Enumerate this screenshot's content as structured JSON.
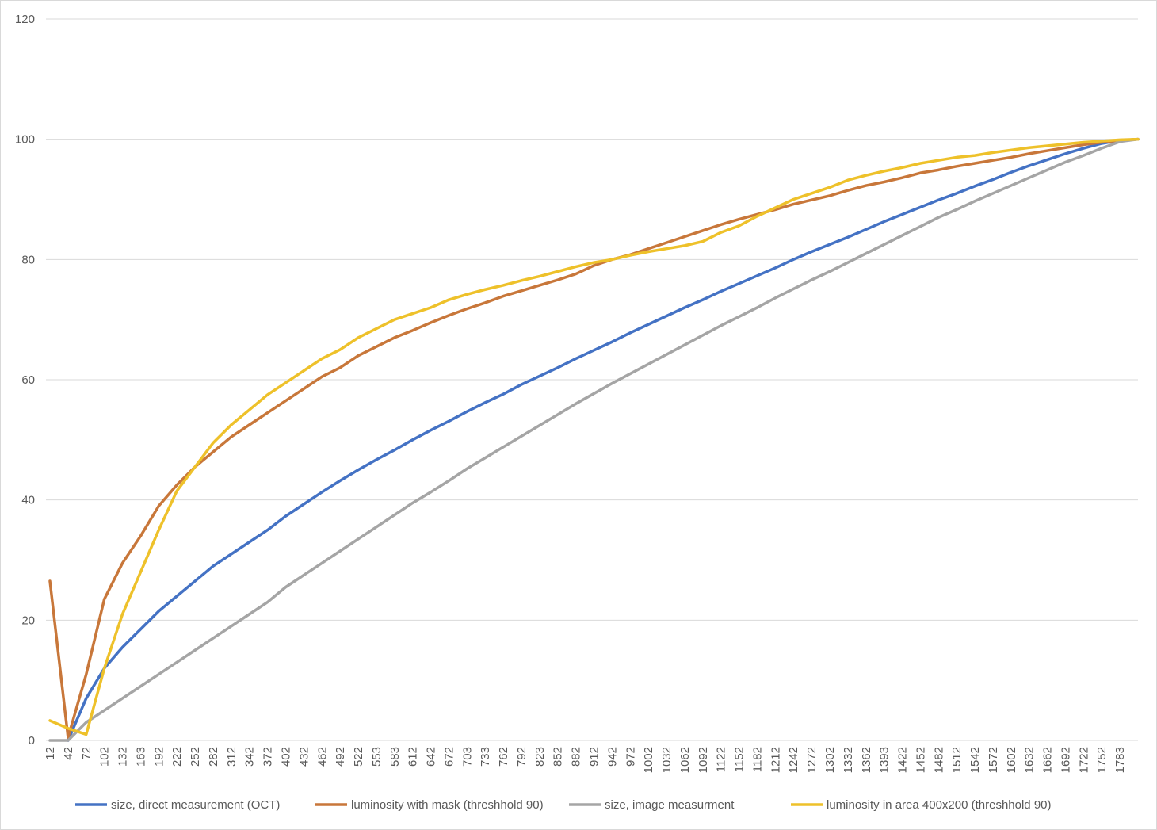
{
  "chart_data": {
    "type": "line",
    "categories": [
      "12",
      "42",
      "72",
      "102",
      "132",
      "163",
      "192",
      "222",
      "252",
      "282",
      "312",
      "342",
      "372",
      "402",
      "432",
      "462",
      "492",
      "522",
      "553",
      "583",
      "612",
      "642",
      "672",
      "703",
      "733",
      "762",
      "792",
      "823",
      "852",
      "882",
      "912",
      "942",
      "972",
      "1002",
      "1032",
      "1062",
      "1092",
      "1122",
      "1152",
      "1182",
      "1212",
      "1242",
      "1272",
      "1302",
      "1332",
      "1362",
      "1393",
      "1422",
      "1452",
      "1482",
      "1512",
      "1542",
      "1572",
      "1602",
      "1632",
      "1662",
      "1692",
      "1722",
      "1752",
      "1783",
      null
    ],
    "series": [
      {
        "name": "size, direct measurement (OCT)",
        "color": "#4472c4",
        "values": [
          null,
          0,
          7,
          12,
          15.5,
          18.5,
          21.5,
          24,
          26.5,
          29,
          31,
          33,
          35,
          37.3,
          39.3,
          41.3,
          43.2,
          45,
          46.7,
          48.3,
          50,
          51.6,
          53.1,
          54.7,
          56.2,
          57.6,
          59.2,
          60.6,
          62,
          63.5,
          64.9,
          66.3,
          67.8,
          69.2,
          70.6,
          72,
          73.3,
          74.7,
          76,
          77.3,
          78.6,
          80,
          81.3,
          82.5,
          83.7,
          85,
          86.3,
          87.5,
          88.7,
          89.9,
          91,
          92.2,
          93.3,
          94.5,
          95.6,
          96.6,
          97.6,
          98.5,
          99.3,
          99.8,
          100
        ]
      },
      {
        "name": "luminosity with mask (threshhold 90)",
        "color": "#c8773a",
        "values": [
          26.5,
          0.5,
          11,
          23.5,
          29.5,
          34,
          39,
          42.5,
          45.5,
          48,
          50.5,
          52.5,
          54.5,
          56.5,
          58.5,
          60.5,
          62,
          64,
          65.5,
          67,
          68.2,
          69.5,
          70.7,
          71.8,
          72.8,
          73.9,
          74.8,
          75.7,
          76.6,
          77.6,
          79,
          80,
          80.8,
          81.8,
          82.8,
          83.8,
          84.8,
          85.8,
          86.7,
          87.5,
          88.3,
          89.2,
          89.9,
          90.6,
          91.5,
          92.3,
          92.9,
          93.6,
          94.4,
          94.9,
          95.5,
          96,
          96.5,
          97,
          97.6,
          98.1,
          98.6,
          99.1,
          99.5,
          99.8,
          100
        ]
      },
      {
        "name": "size, image measurment",
        "color": "#a5a5a5",
        "values": [
          0,
          0,
          3,
          5,
          7,
          9,
          11,
          13,
          15,
          17,
          19,
          21,
          23,
          25.5,
          27.5,
          29.5,
          31.5,
          33.5,
          35.5,
          37.5,
          39.5,
          41.3,
          43.2,
          45.2,
          47,
          48.8,
          50.6,
          52.4,
          54.2,
          56,
          57.7,
          59.4,
          61,
          62.6,
          64.2,
          65.8,
          67.4,
          69,
          70.5,
          72,
          73.6,
          75.1,
          76.6,
          78,
          79.5,
          81,
          82.5,
          84,
          85.5,
          87,
          88.3,
          89.7,
          91,
          92.3,
          93.6,
          94.9,
          96.2,
          97.3,
          98.5,
          99.6,
          100
        ]
      },
      {
        "name": "luminosity in area 400x200 (threshhold 90)",
        "color": "#eec12a",
        "values": [
          3.3,
          2,
          1,
          12,
          21,
          28,
          35,
          41.5,
          45.5,
          49.5,
          52.5,
          55,
          57.5,
          59.5,
          61.5,
          63.5,
          65,
          67,
          68.5,
          70,
          71,
          72,
          73.3,
          74.2,
          75,
          75.7,
          76.5,
          77.2,
          78,
          78.8,
          79.5,
          80,
          80.7,
          81.3,
          81.8,
          82.3,
          83,
          84.5,
          85.6,
          87.2,
          88.6,
          90,
          91,
          92,
          93.2,
          94,
          94.7,
          95.3,
          96,
          96.5,
          97,
          97.3,
          97.8,
          98.2,
          98.6,
          98.9,
          99.2,
          99.5,
          99.7,
          99.9,
          100
        ]
      }
    ],
    "ylim": [
      0,
      120
    ],
    "yticks": [
      0,
      20,
      40,
      60,
      80,
      100,
      120
    ],
    "grid": true,
    "legend": "bottom"
  }
}
